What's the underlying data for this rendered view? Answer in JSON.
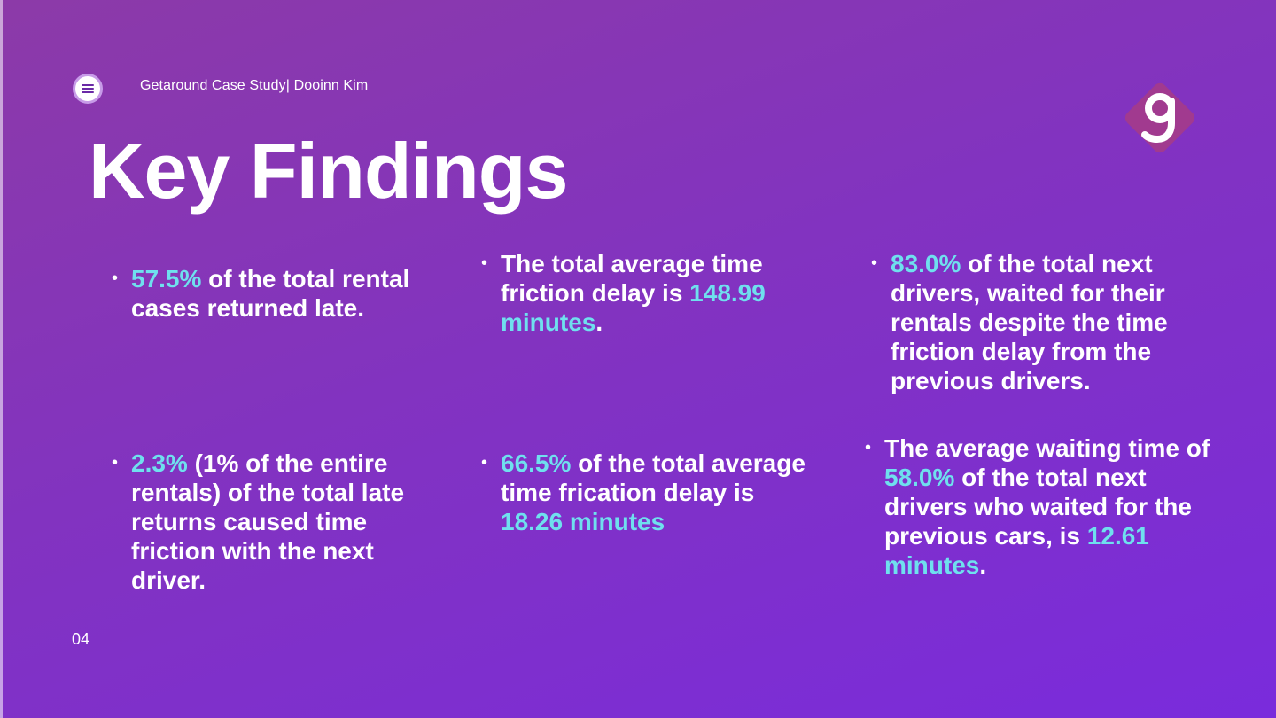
{
  "header": {
    "subtitle": "Getaround Case Study| Dooinn Kim",
    "menu_icon": "hamburger-menu-icon",
    "logo_icon": "getaround-g-logo",
    "logo_color": "#a13a8f"
  },
  "title": "Key Findings",
  "highlight_color": "#6fe0ee",
  "findings": [
    {
      "parts": [
        {
          "t": "57.5%",
          "h": true
        },
        {
          "t": " of the total rental cases returned late.",
          "h": false
        }
      ]
    },
    {
      "parts": [
        {
          "t": "The total average time friction delay is ",
          "h": false
        },
        {
          "t": "148.99 minutes",
          "h": true
        },
        {
          "t": ".",
          "h": false
        }
      ]
    },
    {
      "parts": [
        {
          "t": "83.0%",
          "h": true
        },
        {
          "t": " of the total next drivers, waited for their rentals despite the time friction delay from the previous drivers.",
          "h": false
        }
      ]
    },
    {
      "parts": [
        {
          "t": "2.3%",
          "h": true
        },
        {
          "t": " (1% of the entire rentals) of the total late returns caused time friction with the next driver.",
          "h": false
        }
      ]
    },
    {
      "parts": [
        {
          "t": "66.5%",
          "h": true
        },
        {
          "t": " of the total average time frication delay is ",
          "h": false
        },
        {
          "t": "18.26 minutes",
          "h": true
        }
      ]
    },
    {
      "parts": [
        {
          "t": "The average waiting time of ",
          "h": false
        },
        {
          "t": "58.0%",
          "h": true
        },
        {
          "t": " of the total next drivers who waited for the previous cars, is ",
          "h": false
        },
        {
          "t": "12.61 minutes",
          "h": true
        },
        {
          "t": ".",
          "h": false
        }
      ]
    }
  ],
  "page_number": "04"
}
